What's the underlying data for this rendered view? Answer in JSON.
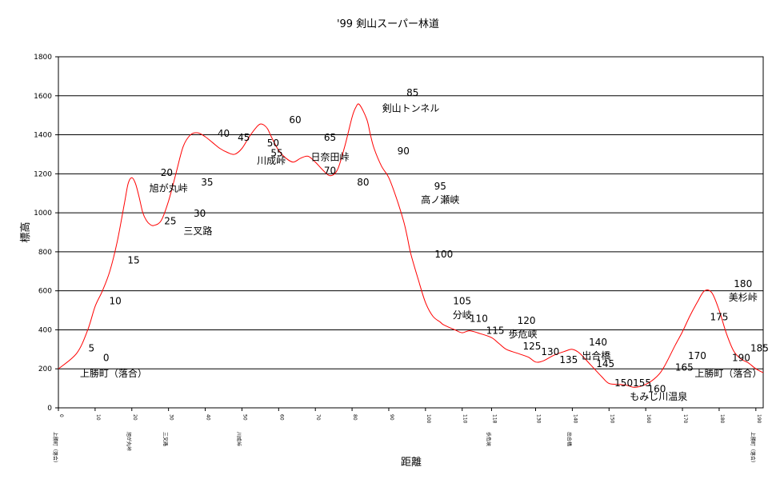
{
  "chart_data": {
    "type": "line",
    "title": "'99 剣山スーパー林道",
    "xlabel": "距離",
    "ylabel": "標高",
    "ylim": [
      0,
      1800
    ],
    "xlim": [
      0,
      192
    ],
    "yticks": [
      0,
      200,
      400,
      600,
      800,
      1000,
      1200,
      1400,
      1600,
      1800
    ],
    "grid": true,
    "line_color": "#ff0000",
    "series": [
      {
        "x": [
          0,
          5,
          8,
          10,
          12,
          14,
          16,
          18,
          19,
          20,
          21,
          22,
          23,
          24,
          25,
          26,
          28,
          30,
          32,
          34,
          36,
          38,
          40,
          42,
          44,
          46,
          48,
          50,
          52,
          54,
          55,
          56,
          57,
          58,
          60,
          62,
          64,
          66,
          68,
          70,
          72,
          74,
          76,
          78,
          80,
          81,
          82,
          84,
          85,
          86,
          88,
          90,
          92,
          94,
          95,
          96,
          98,
          100,
          102,
          104,
          105,
          108,
          110,
          112,
          115,
          118,
          120,
          122,
          125,
          128,
          130,
          132,
          135,
          138,
          140,
          142,
          145,
          148,
          150,
          153,
          155,
          157,
          160,
          163,
          165,
          168,
          170,
          172,
          174,
          176,
          178,
          180,
          182,
          184,
          186,
          188,
          190,
          192
        ],
        "y": [
          200,
          280,
          400,
          520,
          600,
          700,
          850,
          1050,
          1150,
          1180,
          1150,
          1080,
          1000,
          960,
          940,
          935,
          960,
          1060,
          1200,
          1340,
          1400,
          1410,
          1390,
          1360,
          1330,
          1310,
          1300,
          1330,
          1390,
          1440,
          1455,
          1450,
          1430,
          1390,
          1320,
          1280,
          1260,
          1280,
          1290,
          1260,
          1220,
          1190,
          1220,
          1340,
          1490,
          1540,
          1555,
          1480,
          1400,
          1330,
          1240,
          1180,
          1080,
          960,
          880,
          790,
          660,
          540,
          470,
          440,
          425,
          400,
          385,
          395,
          380,
          360,
          330,
          300,
          280,
          260,
          235,
          240,
          270,
          290,
          300,
          280,
          220,
          160,
          125,
          120,
          115,
          105,
          120,
          160,
          210,
          320,
          390,
          470,
          540,
          600,
          590,
          500,
          380,
          290,
          250,
          230,
          200,
          180
        ]
      }
    ],
    "xticks": [
      {
        "x": 0,
        "label": "0",
        "sub": "上勝町（落合）"
      },
      {
        "x": 10,
        "label": "10",
        "sub": ""
      },
      {
        "x": 20,
        "label": "20",
        "sub": "旭が丸峠"
      },
      {
        "x": 30,
        "label": "30",
        "sub": "三叉路"
      },
      {
        "x": 40,
        "label": "40",
        "sub": ""
      },
      {
        "x": 50,
        "label": "50",
        "sub": "川成峠"
      },
      {
        "x": 60,
        "label": "60",
        "sub": ""
      },
      {
        "x": 70,
        "label": "70",
        "sub": ""
      },
      {
        "x": 80,
        "label": "80",
        "sub": ""
      },
      {
        "x": 90,
        "label": "90",
        "sub": ""
      },
      {
        "x": 100,
        "label": "100",
        "sub": ""
      },
      {
        "x": 110,
        "label": "110",
        "sub": ""
      },
      {
        "x": 118,
        "label": "118",
        "sub": "歩危峡"
      },
      {
        "x": 130,
        "label": "130",
        "sub": ""
      },
      {
        "x": 140,
        "label": "140",
        "sub": "出合橋"
      },
      {
        "x": 150,
        "label": "150",
        "sub": ""
      },
      {
        "x": 160,
        "label": "160",
        "sub": ""
      },
      {
        "x": 170,
        "label": "170",
        "sub": ""
      },
      {
        "x": 180,
        "label": "180",
        "sub": ""
      },
      {
        "x": 190,
        "label": "190",
        "sub": "上勝町（落合）"
      }
    ],
    "annotations": [
      {
        "text": "5",
        "x": 9,
        "y": 290
      },
      {
        "text": "0",
        "x": 13,
        "y": 240
      },
      {
        "text": "上勝町（落合）",
        "x": 15,
        "y": 160
      },
      {
        "text": "10",
        "x": 15.5,
        "y": 530
      },
      {
        "text": "15",
        "x": 20.5,
        "y": 740
      },
      {
        "text": "20",
        "x": 29.5,
        "y": 1190
      },
      {
        "text": "旭が丸峠",
        "x": 30,
        "y": 1110
      },
      {
        "text": "25",
        "x": 30.5,
        "y": 940
      },
      {
        "text": "30",
        "x": 38.5,
        "y": 980
      },
      {
        "text": "三叉路",
        "x": 38,
        "y": 890
      },
      {
        "text": "35",
        "x": 40.5,
        "y": 1140
      },
      {
        "text": "40",
        "x": 45,
        "y": 1390
      },
      {
        "text": "45",
        "x": 50.5,
        "y": 1370
      },
      {
        "text": "50",
        "x": 58.5,
        "y": 1340
      },
      {
        "text": "55",
        "x": 59.5,
        "y": 1290
      },
      {
        "text": "川成峠",
        "x": 58,
        "y": 1250
      },
      {
        "text": "60",
        "x": 64.5,
        "y": 1460
      },
      {
        "text": "65",
        "x": 74,
        "y": 1370
      },
      {
        "text": "日奈田峠",
        "x": 74,
        "y": 1270
      },
      {
        "text": "70",
        "x": 74,
        "y": 1200
      },
      {
        "text": "80",
        "x": 83,
        "y": 1140
      },
      {
        "text": "85",
        "x": 96.5,
        "y": 1600
      },
      {
        "text": "剣山トンネル",
        "x": 96,
        "y": 1520
      },
      {
        "text": "90",
        "x": 94,
        "y": 1300
      },
      {
        "text": "95",
        "x": 104,
        "y": 1120
      },
      {
        "text": "高ノ瀬峡",
        "x": 104,
        "y": 1050
      },
      {
        "text": "100",
        "x": 105,
        "y": 770
      },
      {
        "text": "105",
        "x": 110,
        "y": 530
      },
      {
        "text": "分岐",
        "x": 110,
        "y": 460
      },
      {
        "text": "110",
        "x": 114.5,
        "y": 440
      },
      {
        "text": "115",
        "x": 119,
        "y": 380
      },
      {
        "text": "120",
        "x": 127.5,
        "y": 430
      },
      {
        "text": "歩危峡",
        "x": 126.5,
        "y": 360
      },
      {
        "text": "125",
        "x": 129,
        "y": 300
      },
      {
        "text": "130",
        "x": 134,
        "y": 270
      },
      {
        "text": "135",
        "x": 139,
        "y": 230
      },
      {
        "text": "140",
        "x": 147,
        "y": 320
      },
      {
        "text": "出合橋",
        "x": 146.5,
        "y": 250
      },
      {
        "text": "145",
        "x": 149,
        "y": 210
      },
      {
        "text": "150",
        "x": 154,
        "y": 110
      },
      {
        "text": "155",
        "x": 159,
        "y": 110
      },
      {
        "text": "160",
        "x": 163,
        "y": 80
      },
      {
        "text": "もみじ川温泉",
        "x": 163.5,
        "y": 40
      },
      {
        "text": "165",
        "x": 170.5,
        "y": 190
      },
      {
        "text": "170",
        "x": 174,
        "y": 250
      },
      {
        "text": "175",
        "x": 180,
        "y": 450
      },
      {
        "text": "180",
        "x": 186.5,
        "y": 620
      },
      {
        "text": "美杉峠",
        "x": 186.5,
        "y": 550
      },
      {
        "text": "上勝町（落合）",
        "x": 182.5,
        "y": 160
      },
      {
        "text": "190",
        "x": 186,
        "y": 240
      },
      {
        "text": "185",
        "x": 191,
        "y": 290
      }
    ]
  }
}
